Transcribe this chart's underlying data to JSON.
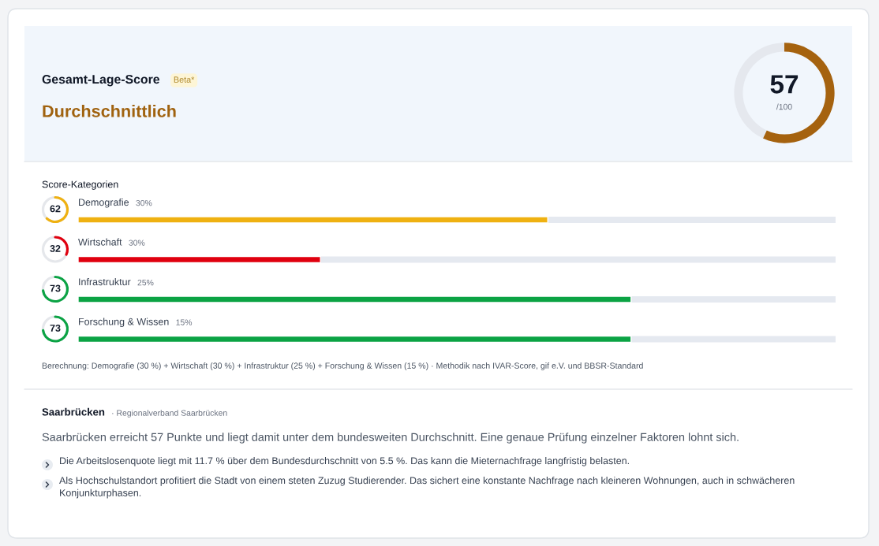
{
  "chart_data": [
    {
      "type": "other",
      "title": "Gesamt-Lage-Score",
      "subtitle": "Durchschnittlich",
      "annotations": [
        "Beta*"
      ]
    },
    {
      "type": "donut",
      "categories": [
        null,
        null
      ],
      "values": [
        57,
        43
      ],
      "colors": [
        "#a5620f",
        "#e5e8ee"
      ],
      "value_labels": [
        "57",
        null
      ],
      "annotations": [
        "/100"
      ]
    },
    {
      "type": "bar",
      "orientation": "horizontal",
      "title": "Score-Kategorien",
      "categories": [
        "Demografie",
        "Wirtschaft",
        "Infrastruktur",
        "Forschung & Wissen"
      ],
      "values": [
        62,
        32,
        73,
        73
      ],
      "colors": [
        "#efb111",
        "#e0000f",
        "#0ba344",
        "#0ba344"
      ],
      "xlim": [
        0,
        100
      ],
      "data_labels": true,
      "tick_labels": "y",
      "grid": "y",
      "annotations": [
        {
          "text": "30%",
          "y": "Demografie"
        },
        {
          "text": "30%",
          "y": "Wirtschaft"
        },
        {
          "text": "25%",
          "y": "Infrastruktur"
        },
        {
          "text": "15%",
          "y": "Forschung & Wissen"
        },
        "Berechnung: Demografie (30 %) + Wirtschaft (30 %) + Infrastruktur (25 %) + Forschung & Wissen (15 %) · Methodik nach IVAR-Score, gif e.V. und BBSR-Standard"
      ]
    },
    {
      "type": "other",
      "title": "Saarbrücken",
      "subtitle": "· Regionalverband Saarbrücken",
      "annotations": [
        "Saarbrücken erreicht 57 Punkte und liegt damit unter dem bundesweiten Durchschnitt. Eine genaue Prüfung einzelner Faktoren lohnt sich.",
        "Die Arbeitslosenquote liegt mit 11.7 % über dem Bundesdurchschnitt von 5.5 %. Das kann die Mieternachfrage langfristig belasten.",
        "Als Hochschulstandort profitiert die Stadt von einem steten Zuzug Studierender. Das sichert eine konstante Nachfrage nach kleineren Wohnungen, auch in schwächeren Konjunkturphasen."
      ]
    }
  ]
}
